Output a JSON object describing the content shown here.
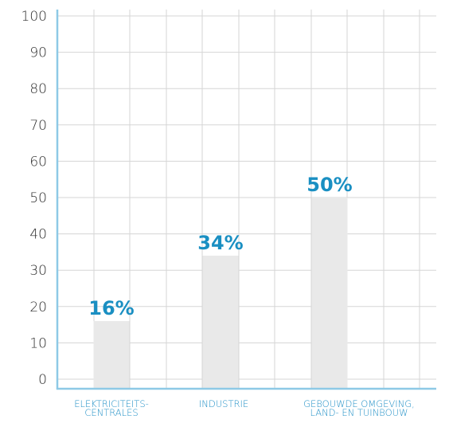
{
  "chart_data": {
    "type": "bar",
    "categories": [
      [
        "ELEKTRICITEITS-",
        "CENTRALES"
      ],
      [
        "INDUSTRIE"
      ],
      [
        "GEBOUWDE OMGEVING,",
        "LAND- EN TUINBOUW"
      ]
    ],
    "values": [
      16,
      34,
      50
    ],
    "data_labels": [
      "16%",
      "34%",
      "50%"
    ],
    "y_ticks": [
      0,
      10,
      20,
      30,
      40,
      50,
      60,
      70,
      80,
      90,
      100
    ],
    "ylim": [
      0,
      100
    ],
    "grid": true,
    "title": "",
    "xlabel": "",
    "ylabel": ""
  },
  "colors": {
    "bar": "#e9e9e9",
    "bar_edge": "#d6d6d6",
    "label": "#1a8fc2",
    "category": "#1f8fc6",
    "axis": "#8ec9e6",
    "grid": "#d5d5d5",
    "tick_text": "#2b2b2b"
  }
}
